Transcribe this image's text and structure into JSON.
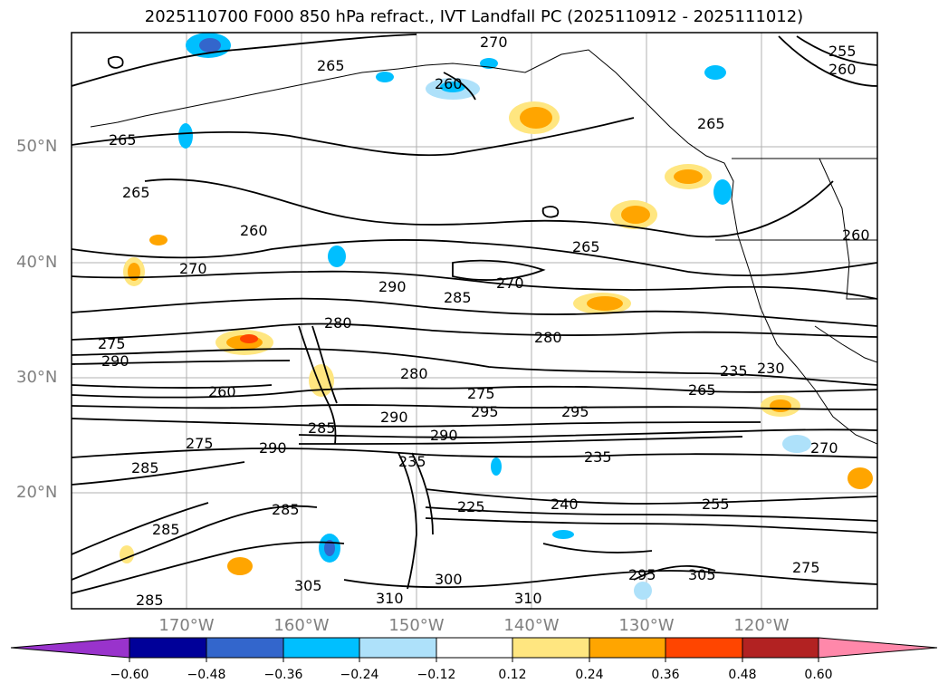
{
  "title": "2025110700 F000 850 hPa refract., IVT Landfall PC (2025110912 - 2025111012)",
  "lat_labels": [
    "50°N",
    "40°N",
    "30°N",
    "20°N"
  ],
  "lon_labels": [
    "170°W",
    "160°W",
    "150°W",
    "140°W",
    "130°W",
    "120°W"
  ],
  "contour_labels": [
    "270",
    "265",
    "260",
    "255",
    "260",
    "265",
    "265",
    "265",
    "260",
    "265",
    "260",
    "270",
    "290",
    "280",
    "275",
    "290",
    "285",
    "270",
    "260",
    "280",
    "280",
    "275",
    "290",
    "295",
    "295",
    "235",
    "235",
    "230",
    "265",
    "285",
    "290",
    "290",
    "285",
    "235",
    "225",
    "240",
    "255",
    "285",
    "305",
    "310",
    "310",
    "300",
    "295",
    "305",
    "275",
    "270",
    "275",
    "285",
    "285"
  ],
  "colorbar": {
    "ticks": [
      "−0.60",
      "−0.48",
      "−0.36",
      "−0.24",
      "−0.12",
      "0.12",
      "0.24",
      "0.36",
      "0.48",
      "0.60"
    ],
    "colors": [
      "#9933cc",
      "#000099",
      "#3366cc",
      "#00bfff",
      "#aee1fa",
      "#ffffff",
      "#ffe680",
      "#ffa500",
      "#ff4500",
      "#b22222",
      "#ff88aa"
    ]
  }
}
